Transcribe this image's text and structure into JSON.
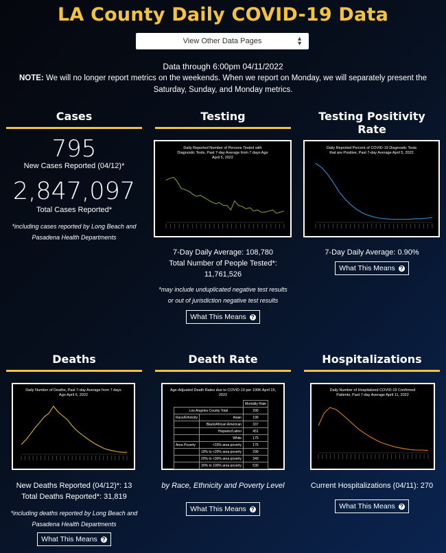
{
  "page": {
    "title": "LA County Daily COVID-19 Data",
    "selector_label": "View Other Data Pages",
    "data_through": "Data through 6:00pm 04/11/2022",
    "note_label": "NOTE:",
    "note_text": "We will no longer report metrics on the weekends. When we report on Monday, we will separately present the Saturday, Sunday, and Monday metrics."
  },
  "cases": {
    "heading": "Cases",
    "new_value": "795",
    "new_label": "New Cases Reported (04/12)*",
    "total_value": "2,847,097",
    "total_label": "Total Cases Reported*",
    "footnote": "*including cases reported by Long Beach and Pasadena Health Departments"
  },
  "testing": {
    "heading": "Testing",
    "chart_title": "Daily Reported Number of Persons Tested with Diagnostic Tests, Past 7-day Average from 7 days Ago April 5, 2022",
    "avg": "7-Day Daily Average: 108,780",
    "total_label": "Total Number of People Tested*:",
    "total_value": "11,761,526",
    "footnote": "*may include unduplicated negative test results or out of jurisdiction negative test results",
    "button": "What This Means"
  },
  "positivity": {
    "heading": "Testing Positivity Rate",
    "chart_title": "Daily Reported Percent of COVID-19 Diagnostic Tests that are Positive, Past 7-day Average April 5, 2022",
    "avg": "7-Day Daily Average: 0.90%",
    "button": "What This Means"
  },
  "deaths": {
    "heading": "Deaths",
    "chart_title": "Daily Number of Deaths, Past 7-day Average from 7 days Ago April 5, 2022",
    "new": "New Deaths Reported (04/12)*: 13",
    "total": "Total Deaths Reported*: 31,819",
    "footnote": "*including deaths reported by Long Beach and Pasadena Health Departments",
    "button": "What This Means"
  },
  "death_rate": {
    "heading": "Death Rate",
    "chart_title": "Age-Adjusted Death Rates due to COVID-19 per 100K April 15, 2022",
    "table_header": "Mortality Rate",
    "total_label": "Los Angeles County Total",
    "total_value": "290",
    "rows": [
      {
        "group": "Race/Ethnicity",
        "label": "Asian",
        "value": "199"
      },
      {
        "group": "",
        "label": "Black/African American",
        "value": "337"
      },
      {
        "group": "",
        "label": "Hispanic/Latino",
        "value": "451"
      },
      {
        "group": "",
        "label": "White",
        "value": "175"
      },
      {
        "group": "Area Poverty",
        "label": "<10% area poverty",
        "value": "175"
      },
      {
        "group": "",
        "label": "10% to <20% area poverty",
        "value": "299"
      },
      {
        "group": "",
        "label": "20% to <30% area poverty",
        "value": "349"
      },
      {
        "group": "",
        "label": "30% to 100% area poverty",
        "value": "530"
      }
    ],
    "caption": "by Race, Ethnicity and Poverty Level",
    "button": "What This Means"
  },
  "hospitalizations": {
    "heading": "Hospitalizations",
    "chart_title": "Daily Number of Hospitalized COVID-19 Confirmed Patients, Past 7-day Average April 11, 2022",
    "current": "Current Hospitalizations (04/11): 270",
    "button": "What This Means"
  },
  "colors": {
    "accent": "#f5c33b",
    "testing_line": "#7a9a2e",
    "positivity_line": "#2f8fd8",
    "deaths_line": "#e0b21c",
    "hosp_line": "#e07b1c"
  }
}
